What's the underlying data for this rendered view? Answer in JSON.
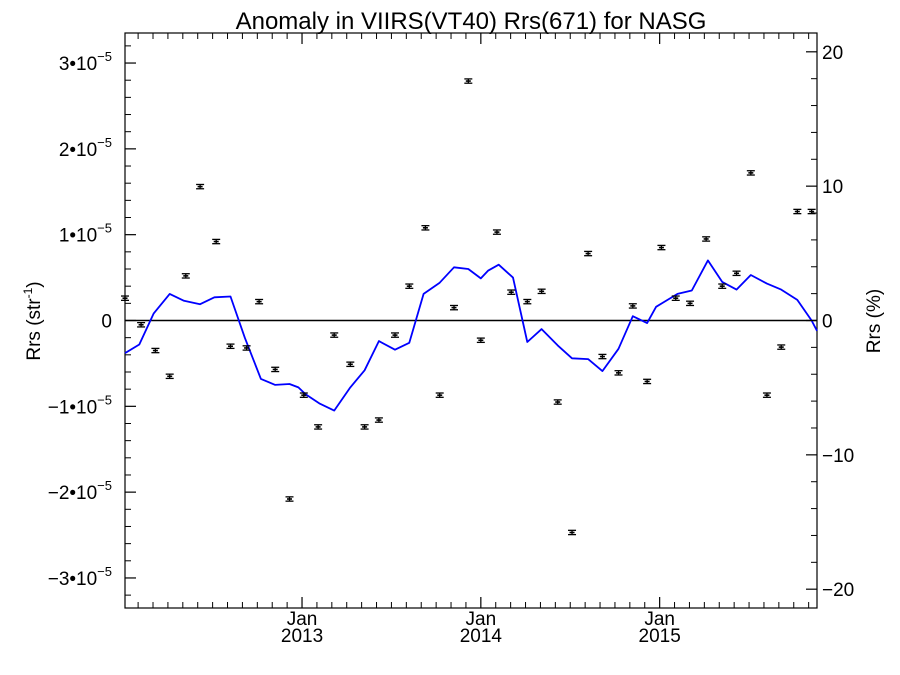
{
  "chart_data": {
    "type": "scatter",
    "title": "Anomaly in VIIRS(VT40) Rrs(671) for NASG",
    "ylabel": {
      "base": "Rrs (str",
      "sup": "-1",
      "close": ")"
    },
    "ylabel_right": "Rrs (%)",
    "xlabel": "",
    "x_ticks": [
      {
        "x": 2013.0,
        "month": "Jan",
        "year": "2013"
      },
      {
        "x": 2014.0,
        "month": "Jan",
        "year": "2014"
      },
      {
        "x": 2015.0,
        "month": "Jan",
        "year": "2015"
      }
    ],
    "xlim": [
      2012.01,
      2015.88
    ],
    "ylim": [
      -3.35e-05,
      3.35e-05
    ],
    "y_ticks": [
      {
        "v": 3e-05,
        "mant": "3•10",
        "exp": "−5",
        "plain": ""
      },
      {
        "v": 2e-05,
        "mant": "2•10",
        "exp": "−5",
        "plain": ""
      },
      {
        "v": 1e-05,
        "mant": "1•10",
        "exp": "−5",
        "plain": ""
      },
      {
        "v": 0,
        "mant": "",
        "exp": "",
        "plain": "0"
      },
      {
        "v": -1e-05,
        "mant": "−1•10",
        "exp": "−5",
        "plain": ""
      },
      {
        "v": -2e-05,
        "mant": "−2•10",
        "exp": "−5",
        "plain": ""
      },
      {
        "v": -3e-05,
        "mant": "−3•10",
        "exp": "−5",
        "plain": ""
      }
    ],
    "y2lim": [
      -21.4,
      21.4
    ],
    "y2_ticks": [
      {
        "v": 20,
        "label": "20"
      },
      {
        "v": 10,
        "label": "10"
      },
      {
        "v": 0,
        "label": "0"
      },
      {
        "v": -10,
        "label": "−10"
      },
      {
        "v": -20,
        "label": "−20"
      }
    ],
    "zero_line": 0,
    "series": [
      {
        "kind": "points_with_error_bars",
        "color": "#000000",
        "error": 2.5e-07,
        "x": [
          2012.01,
          2012.1,
          2012.18,
          2012.26,
          2012.35,
          2012.43,
          2012.52,
          2012.6,
          2012.69,
          2012.76,
          2012.85,
          2012.93,
          2013.01,
          2013.09,
          2013.18,
          2013.27,
          2013.35,
          2013.43,
          2013.52,
          2013.6,
          2013.69,
          2013.77,
          2013.85,
          2013.93,
          2014.0,
          2014.09,
          2014.17,
          2014.26,
          2014.34,
          2014.43,
          2014.51,
          2014.6,
          2014.68,
          2014.77,
          2014.85,
          2014.93,
          2015.01,
          2015.09,
          2015.17,
          2015.26,
          2015.35,
          2015.43,
          2015.51,
          2015.6,
          2015.68,
          2015.77,
          2015.85
        ],
        "y": [
          2.6e-06,
          -5e-07,
          -3.5e-06,
          -6.5e-06,
          5.2e-06,
          1.56e-05,
          9.2e-06,
          -3e-06,
          -3.2e-06,
          2.2e-06,
          -5.7e-06,
          -2.08e-05,
          -8.7e-06,
          -1.24e-05,
          -1.7e-06,
          -5.1e-06,
          -1.24e-05,
          -1.16e-05,
          -1.7e-06,
          4e-06,
          1.08e-05,
          -8.7e-06,
          1.5e-06,
          2.79e-05,
          -2.3e-06,
          1.03e-05,
          3.3e-06,
          2.2e-06,
          3.4e-06,
          -9.5e-06,
          -2.47e-05,
          7.8e-06,
          -4.2e-06,
          -6.1e-06,
          1.7e-06,
          -7.1e-06,
          8.5e-06,
          2.6e-06,
          2e-06,
          9.5e-06,
          4e-06,
          5.5e-06,
          1.72e-05,
          -8.7e-06,
          -3.1e-06,
          1.27e-05,
          1.27e-05
        ]
      },
      {
        "kind": "line",
        "color": "#0000ff",
        "x": [
          2012.01,
          2012.09,
          2012.17,
          2012.26,
          2012.34,
          2012.43,
          2012.51,
          2012.6,
          2012.68,
          2012.77,
          2012.85,
          2012.93,
          2012.98,
          2013.02,
          2013.1,
          2013.18,
          2013.27,
          2013.35,
          2013.43,
          2013.52,
          2013.6,
          2013.68,
          2013.77,
          2013.85,
          2013.93,
          2014.0,
          2014.04,
          2014.1,
          2014.18,
          2014.26,
          2014.34,
          2014.43,
          2014.51,
          2014.6,
          2014.68,
          2014.77,
          2014.85,
          2014.93,
          2014.98,
          2015.02,
          2015.1,
          2015.18,
          2015.27,
          2015.35,
          2015.43,
          2015.51,
          2015.6,
          2015.68,
          2015.77,
          2015.85,
          2015.88
        ],
        "y": [
          -3.8e-06,
          -2.8e-06,
          8e-07,
          3.1e-06,
          2.3e-06,
          1.9e-06,
          2.7e-06,
          2.8e-06,
          -2e-06,
          -6.8e-06,
          -7.5e-06,
          -7.4e-06,
          -7.8e-06,
          -8.6e-06,
          -9.7e-06,
          -1.05e-05,
          -7.8e-06,
          -5.8e-06,
          -2.4e-06,
          -3.4e-06,
          -2.6e-06,
          3.1e-06,
          4.4e-06,
          6.2e-06,
          6e-06,
          4.9e-06,
          5.8e-06,
          6.5e-06,
          5e-06,
          -2.5e-06,
          -1e-06,
          -2.9e-06,
          -4.4e-06,
          -4.5e-06,
          -5.9e-06,
          -3.3e-06,
          5e-07,
          -3e-07,
          1.6e-06,
          2.1e-06,
          3.1e-06,
          3.5e-06,
          7e-06,
          4.5e-06,
          3.6e-06,
          5.3e-06,
          4.3e-06,
          3.6e-06,
          2.4e-06,
          0,
          -1.2e-06
        ]
      }
    ],
    "grid": false,
    "legend": "none"
  }
}
